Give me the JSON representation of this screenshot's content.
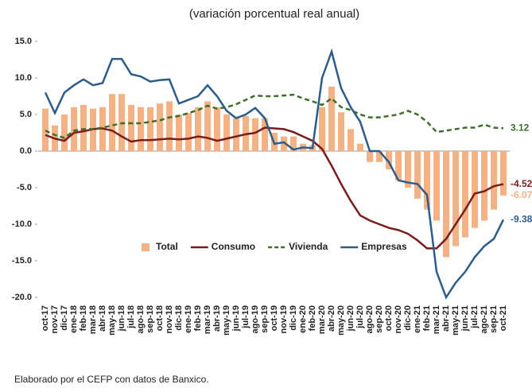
{
  "chart_data": {
    "type": "combo",
    "subtitle": "(variación porcentual real anual)",
    "note": "Elaborado por el CEFP con datos de Banxico.",
    "categories": [
      "oct-17",
      "nov-17",
      "dic-17",
      "ene-18",
      "feb-18",
      "mar-18",
      "abr-18",
      "may-18",
      "jun-18",
      "jul-18",
      "ago-18",
      "sep-18",
      "oct-18",
      "nov-18",
      "dic-18",
      "ene-19",
      "feb-19",
      "mar-19",
      "abr-19",
      "may-19",
      "jun-19",
      "jul-19",
      "ago-19",
      "sep-19",
      "oct-19",
      "nov-19",
      "dic-19",
      "ene-20",
      "feb-20",
      "mar-20",
      "abr-20",
      "may-20",
      "jun-20",
      "jul-20",
      "ago-20",
      "sep-20",
      "oct-20",
      "nov-20",
      "dic-20",
      "ene-21",
      "feb-21",
      "mar-21",
      "abr-21",
      "may-21",
      "jun-21",
      "jul-21",
      "ago-21",
      "sep-21",
      "oct-21"
    ],
    "ylim": [
      -20,
      15
    ],
    "yticks": [
      {
        "value": -20,
        "label": "-20.0"
      },
      {
        "value": -15,
        "label": "-15.0"
      },
      {
        "value": -10,
        "label": "-10.0"
      },
      {
        "value": -5,
        "label": "-5.0"
      },
      {
        "value": 0,
        "label": "0.0"
      },
      {
        "value": 5,
        "label": "5.0"
      },
      {
        "value": 10,
        "label": "10.0"
      },
      {
        "value": 15,
        "label": "15.0"
      }
    ],
    "series": [
      {
        "name": "Total",
        "type": "bar",
        "color": "#f4b183",
        "values": [
          5.8,
          3.5,
          5,
          6,
          6.3,
          5.8,
          6,
          7.8,
          7.8,
          6.3,
          6,
          6,
          6.5,
          6.8,
          5,
          5.2,
          6,
          6.8,
          6,
          5,
          4.5,
          4.8,
          4.5,
          4.5,
          2.5,
          2,
          2,
          1,
          0.8,
          6,
          8.8,
          5.3,
          3,
          1,
          -1.5,
          -1.5,
          -2.5,
          -4,
          -5,
          -6.5,
          -8,
          -9.5,
          -14.5,
          -13,
          -11.8,
          -10.5,
          -9.5,
          -8,
          -6.07
        ]
      },
      {
        "name": "Consumo",
        "type": "line",
        "color": "#7b1c1c",
        "dashed": false,
        "values": [
          2.2,
          1.7,
          1.4,
          2.5,
          2.7,
          3,
          3.1,
          2.8,
          2,
          1.3,
          1.5,
          1.5,
          1.6,
          1.7,
          1.6,
          1.7,
          2,
          1.8,
          1.4,
          1.7,
          2,
          2.3,
          2.5,
          3.2,
          3.1,
          3,
          2.6,
          2,
          1.4,
          0.3,
          -2,
          -4.5,
          -6.8,
          -8.8,
          -9.5,
          -10,
          -10.5,
          -10.8,
          -11.3,
          -12.2,
          -13.3,
          -13.3,
          -12,
          -10,
          -8,
          -5.8,
          -5.5,
          -4.8,
          -4.52
        ]
      },
      {
        "name": "Vivienda",
        "type": "line",
        "color": "#3d6e2a",
        "dashed": true,
        "values": [
          2.8,
          2.2,
          1.8,
          2.8,
          3,
          3,
          3.2,
          3.5,
          3.8,
          3.8,
          3.8,
          4,
          4.2,
          4.6,
          4.8,
          5.2,
          5.6,
          6.2,
          5.8,
          6,
          6.4,
          7,
          7.6,
          7.5,
          7.5,
          7.6,
          7.7,
          7.2,
          6.8,
          6.3,
          7.2,
          6,
          5.6,
          5,
          4.6,
          4.6,
          4.8,
          5,
          5.5,
          5,
          4,
          2.6,
          2.8,
          3,
          3.2,
          3.2,
          3.6,
          3.2,
          3.12
        ]
      },
      {
        "name": "Empresas",
        "type": "line",
        "color": "#2e5c8a",
        "dashed": false,
        "values": [
          8,
          5.2,
          8,
          9,
          9.8,
          9,
          9.3,
          12.6,
          12.6,
          10.5,
          10.2,
          9.5,
          9.7,
          9.8,
          6.5,
          7,
          7.5,
          9,
          7.5,
          5.5,
          4.5,
          5,
          5.9,
          4.5,
          1,
          1.2,
          0.2,
          0.5,
          0.4,
          10,
          13.6,
          8.6,
          6,
          4,
          0,
          0,
          -1.5,
          -4,
          -4.3,
          -4.5,
          -6,
          -16.5,
          -20,
          -18,
          -16.5,
          -14.5,
          -13,
          -12,
          -9.38
        ]
      }
    ]
  }
}
